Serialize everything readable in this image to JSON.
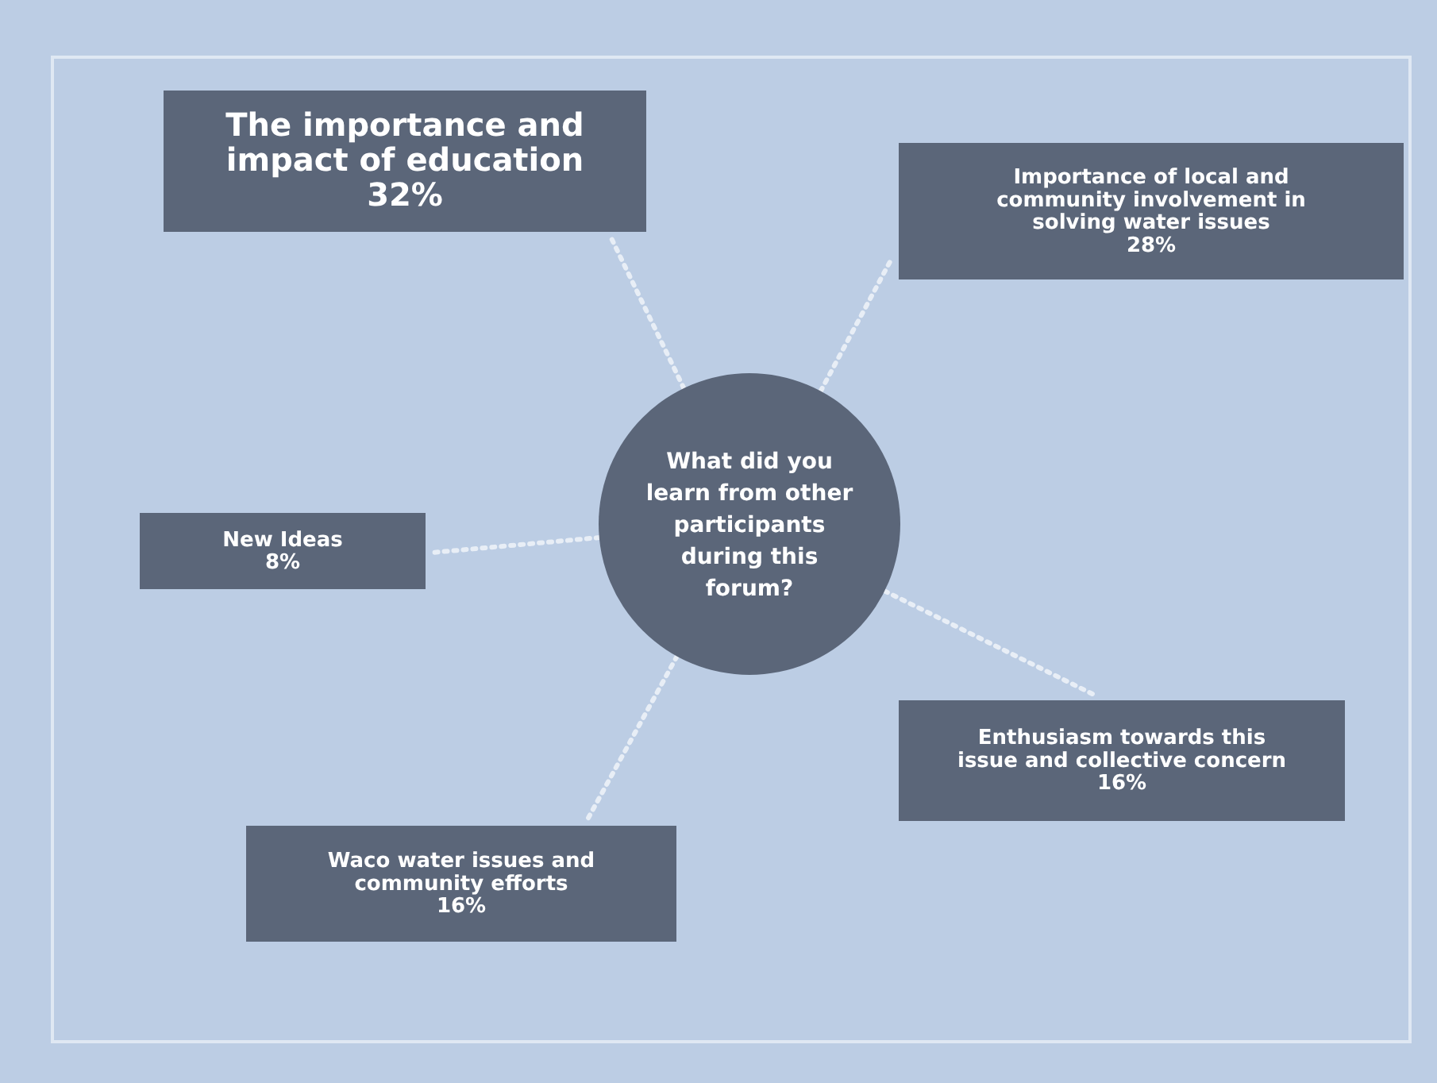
{
  "chart_data": {
    "type": "other",
    "title": "What did you learn from other participants during this forum?",
    "categories": [
      "The importance and impact of education",
      "Importance of local and community involvement in solving water issues",
      "New Ideas",
      "Enthusiasm towards this issue and collective concern",
      "Waco water issues and community efforts"
    ],
    "values": [
      32,
      28,
      8,
      16,
      16
    ],
    "value_labels": [
      "32%",
      "28%",
      "8%",
      "16%",
      "16%"
    ],
    "colors": [
      "#5b6679",
      "#5b6679",
      "#5b6679",
      "#5b6679",
      "#5b6679"
    ]
  }
}
